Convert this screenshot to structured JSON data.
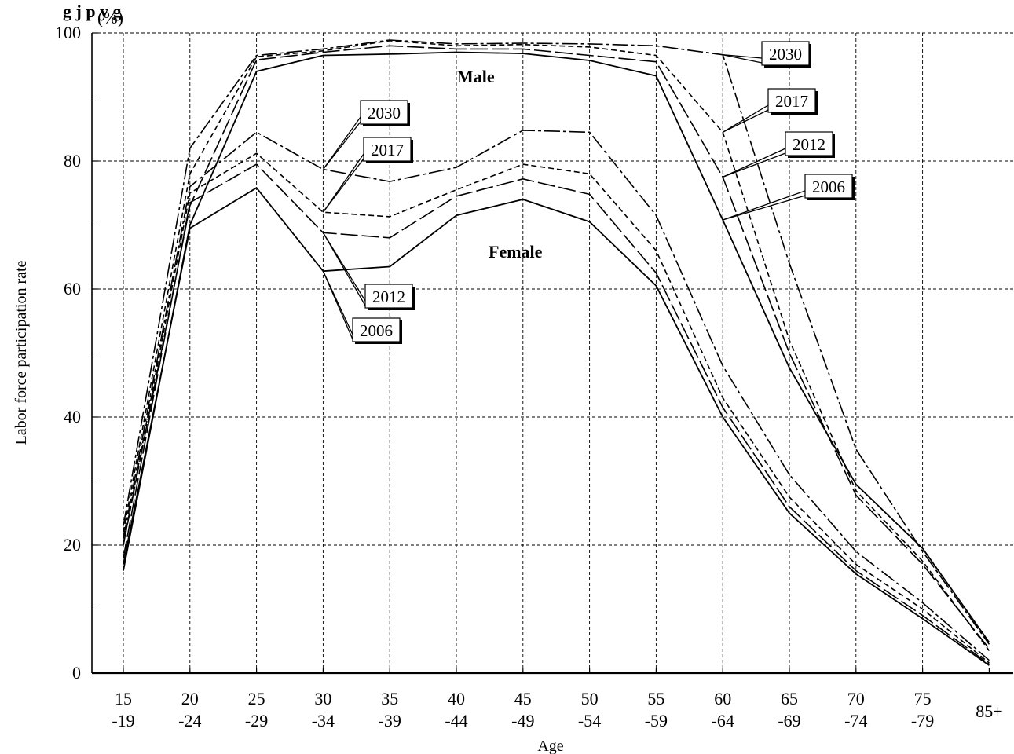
{
  "chart_data": {
    "type": "line",
    "title": "g                j                                p           y g",
    "xlabel": "Age",
    "ylabel": "Labor force participation rate",
    "yunit": "(%)",
    "ylim": [
      0,
      100
    ],
    "yticks": [
      0,
      20,
      40,
      60,
      80,
      100
    ],
    "grid": true,
    "categories": [
      "15-19",
      "20-24",
      "25-29",
      "30-34",
      "35-39",
      "40-44",
      "45-49",
      "50-54",
      "55-59",
      "60-64",
      "65-69",
      "70-74",
      "75-79",
      "85+"
    ],
    "category_labels": [
      {
        "top": "15",
        "bottom": "-19"
      },
      {
        "top": "20",
        "bottom": "-24"
      },
      {
        "top": "25",
        "bottom": "-29"
      },
      {
        "top": "30",
        "bottom": "-34"
      },
      {
        "top": "35",
        "bottom": "-39"
      },
      {
        "top": "40",
        "bottom": "-44"
      },
      {
        "top": "45",
        "bottom": "-49"
      },
      {
        "top": "50",
        "bottom": "-54"
      },
      {
        "top": "55",
        "bottom": "-59"
      },
      {
        "top": "60",
        "bottom": "-64"
      },
      {
        "top": "65",
        "bottom": "-69"
      },
      {
        "top": "70",
        "bottom": "-74"
      },
      {
        "top": "75",
        "bottom": "-79"
      },
      {
        "top": "85+",
        "bottom": ""
      }
    ],
    "group_labels": {
      "male": "Male",
      "female": "Female"
    },
    "series": [
      {
        "name": "2006",
        "group": "male",
        "style": "solid",
        "values": [
          16,
          70,
          94,
          96.5,
          96.7,
          97,
          96.8,
          95.7,
          93.3,
          70.8,
          47.7,
          29.5,
          19.5,
          4.8
        ]
      },
      {
        "name": "2012",
        "group": "male",
        "style": "longdash",
        "values": [
          20,
          73,
          95.8,
          97,
          98,
          97.5,
          97.5,
          96.5,
          95.5,
          77.5,
          50,
          27.8,
          17,
          3.8
        ]
      },
      {
        "name": "2017",
        "group": "male",
        "style": "shortdash",
        "values": [
          22,
          78,
          96.3,
          97.2,
          98.8,
          98,
          98.2,
          97.8,
          96.5,
          84.5,
          52,
          28.5,
          17.5,
          3.5
        ]
      },
      {
        "name": "2030",
        "group": "male",
        "style": "dashdot",
        "values": [
          23,
          82,
          96.5,
          97.5,
          98.9,
          98.3,
          98.4,
          98.3,
          98,
          96.6,
          64,
          35,
          19,
          4.5
        ]
      },
      {
        "name": "2006",
        "group": "female",
        "style": "solid",
        "values": [
          17,
          69.5,
          75.8,
          62.8,
          63.5,
          71.5,
          74,
          70.5,
          60.5,
          40,
          25,
          15.5,
          8.5,
          1.2
        ]
      },
      {
        "name": "2012",
        "group": "female",
        "style": "longdash",
        "values": [
          18,
          73.5,
          79.5,
          68.8,
          68,
          74.5,
          77.2,
          74.8,
          62.5,
          41.5,
          26,
          16,
          9,
          1.4
        ]
      },
      {
        "name": "2017",
        "group": "female",
        "style": "shortdash",
        "values": [
          20,
          75,
          81.2,
          72,
          71.3,
          75.5,
          79.5,
          78,
          66,
          43,
          27.5,
          17,
          10,
          1.6
        ]
      },
      {
        "name": "2030",
        "group": "female",
        "style": "dashdot",
        "values": [
          21,
          76,
          84.5,
          78.7,
          76.8,
          79,
          84.8,
          84.5,
          71.5,
          48,
          31,
          19,
          11,
          2
        ]
      }
    ],
    "callouts": {
      "male": [
        {
          "text": "2030",
          "anchor_series": 3,
          "anchor_index": 9
        },
        {
          "text": "2017",
          "anchor_series": 2,
          "anchor_index": 9
        },
        {
          "text": "2012",
          "anchor_series": 1,
          "anchor_index": 9
        },
        {
          "text": "2006",
          "anchor_series": 0,
          "anchor_index": 9
        }
      ],
      "female": [
        {
          "text": "2030",
          "anchor_series": 7,
          "anchor_index": 3
        },
        {
          "text": "2017",
          "anchor_series": 6,
          "anchor_index": 3
        },
        {
          "text": "2012",
          "anchor_series": 5,
          "anchor_index": 3
        },
        {
          "text": "2006",
          "anchor_series": 4,
          "anchor_index": 3
        }
      ]
    }
  }
}
